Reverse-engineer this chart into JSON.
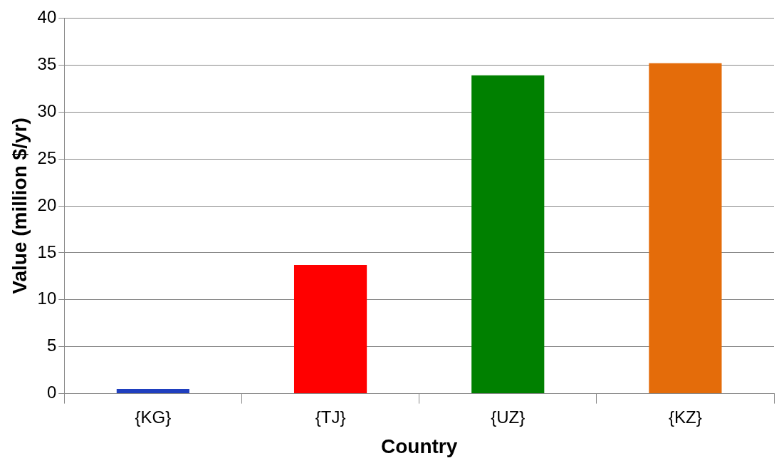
{
  "chart_data": {
    "type": "bar",
    "xlabel": "Country",
    "ylabel": "Value (million $/yr)",
    "categories": [
      "{KG}",
      "{TJ}",
      "{UZ}",
      "{KZ}"
    ],
    "values": [
      0.5,
      13.7,
      33.9,
      35.2
    ],
    "colors": [
      "#1f3fbf",
      "#ff0000",
      "#008000",
      "#e46c0a"
    ],
    "ylim": [
      0,
      40
    ],
    "yticks": [
      0,
      5,
      10,
      15,
      20,
      25,
      30,
      35,
      40
    ],
    "grid": "y",
    "legend": false
  }
}
